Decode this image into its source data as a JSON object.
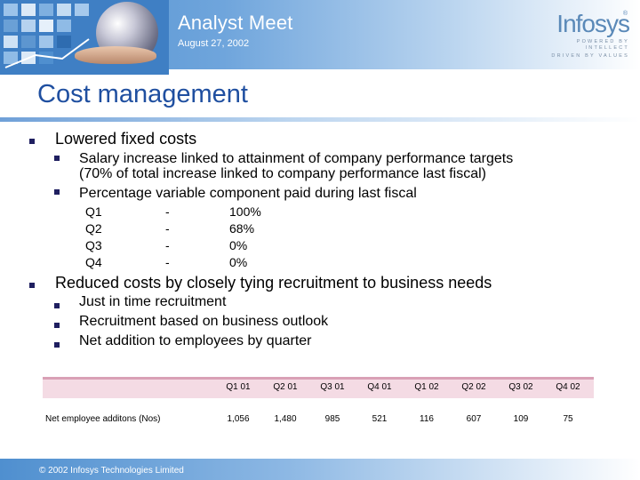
{
  "header": {
    "title": "Analyst Meet",
    "date": "August 27, 2002",
    "logo_word": "Infosys",
    "logo_reg": "®",
    "logo_tag_line1": "POWERED BY INTELLECT",
    "logo_tag_line2": "DRIVEN BY VALUES"
  },
  "slide_title": "Cost management",
  "bullets": [
    {
      "text": "Lowered fixed costs",
      "sub": [
        "Salary increase linked to attainment of company performance targets",
        "(70% of total increase linked to company performance last fiscal)",
        "Percentage variable component paid during last fiscal"
      ],
      "quarters": [
        {
          "q": "Q1",
          "dash": "-",
          "pct": "100%"
        },
        {
          "q": "Q2",
          "dash": "-",
          "pct": "68%"
        },
        {
          "q": "Q3",
          "dash": "-",
          "pct": "0%"
        },
        {
          "q": "Q4",
          "dash": "-",
          "pct": "0%"
        }
      ]
    },
    {
      "text": "Reduced costs by closely tying recruitment to business needs",
      "sub": [
        "Just in time recruitment",
        "Recruitment based on business outlook",
        "Net addition to employees by quarter"
      ]
    }
  ],
  "table": {
    "columns": [
      "Q1 01",
      "Q2 01",
      "Q3 01",
      "Q4 01",
      "Q1 02",
      "Q2 02",
      "Q3 02",
      "Q4 02"
    ],
    "row_label": "Net employee additons (Nos)",
    "values": [
      "1,056",
      "1,480",
      "985",
      "521",
      "116",
      "607",
      "109",
      "75"
    ]
  },
  "footer": {
    "copyright": "© 2002 Infosys Technologies Limited"
  },
  "colors": {
    "title": "#1f4fa0",
    "header_band": "#4f8fcf",
    "logo": "#5a89b8",
    "table_band": "#f4dbe4"
  }
}
